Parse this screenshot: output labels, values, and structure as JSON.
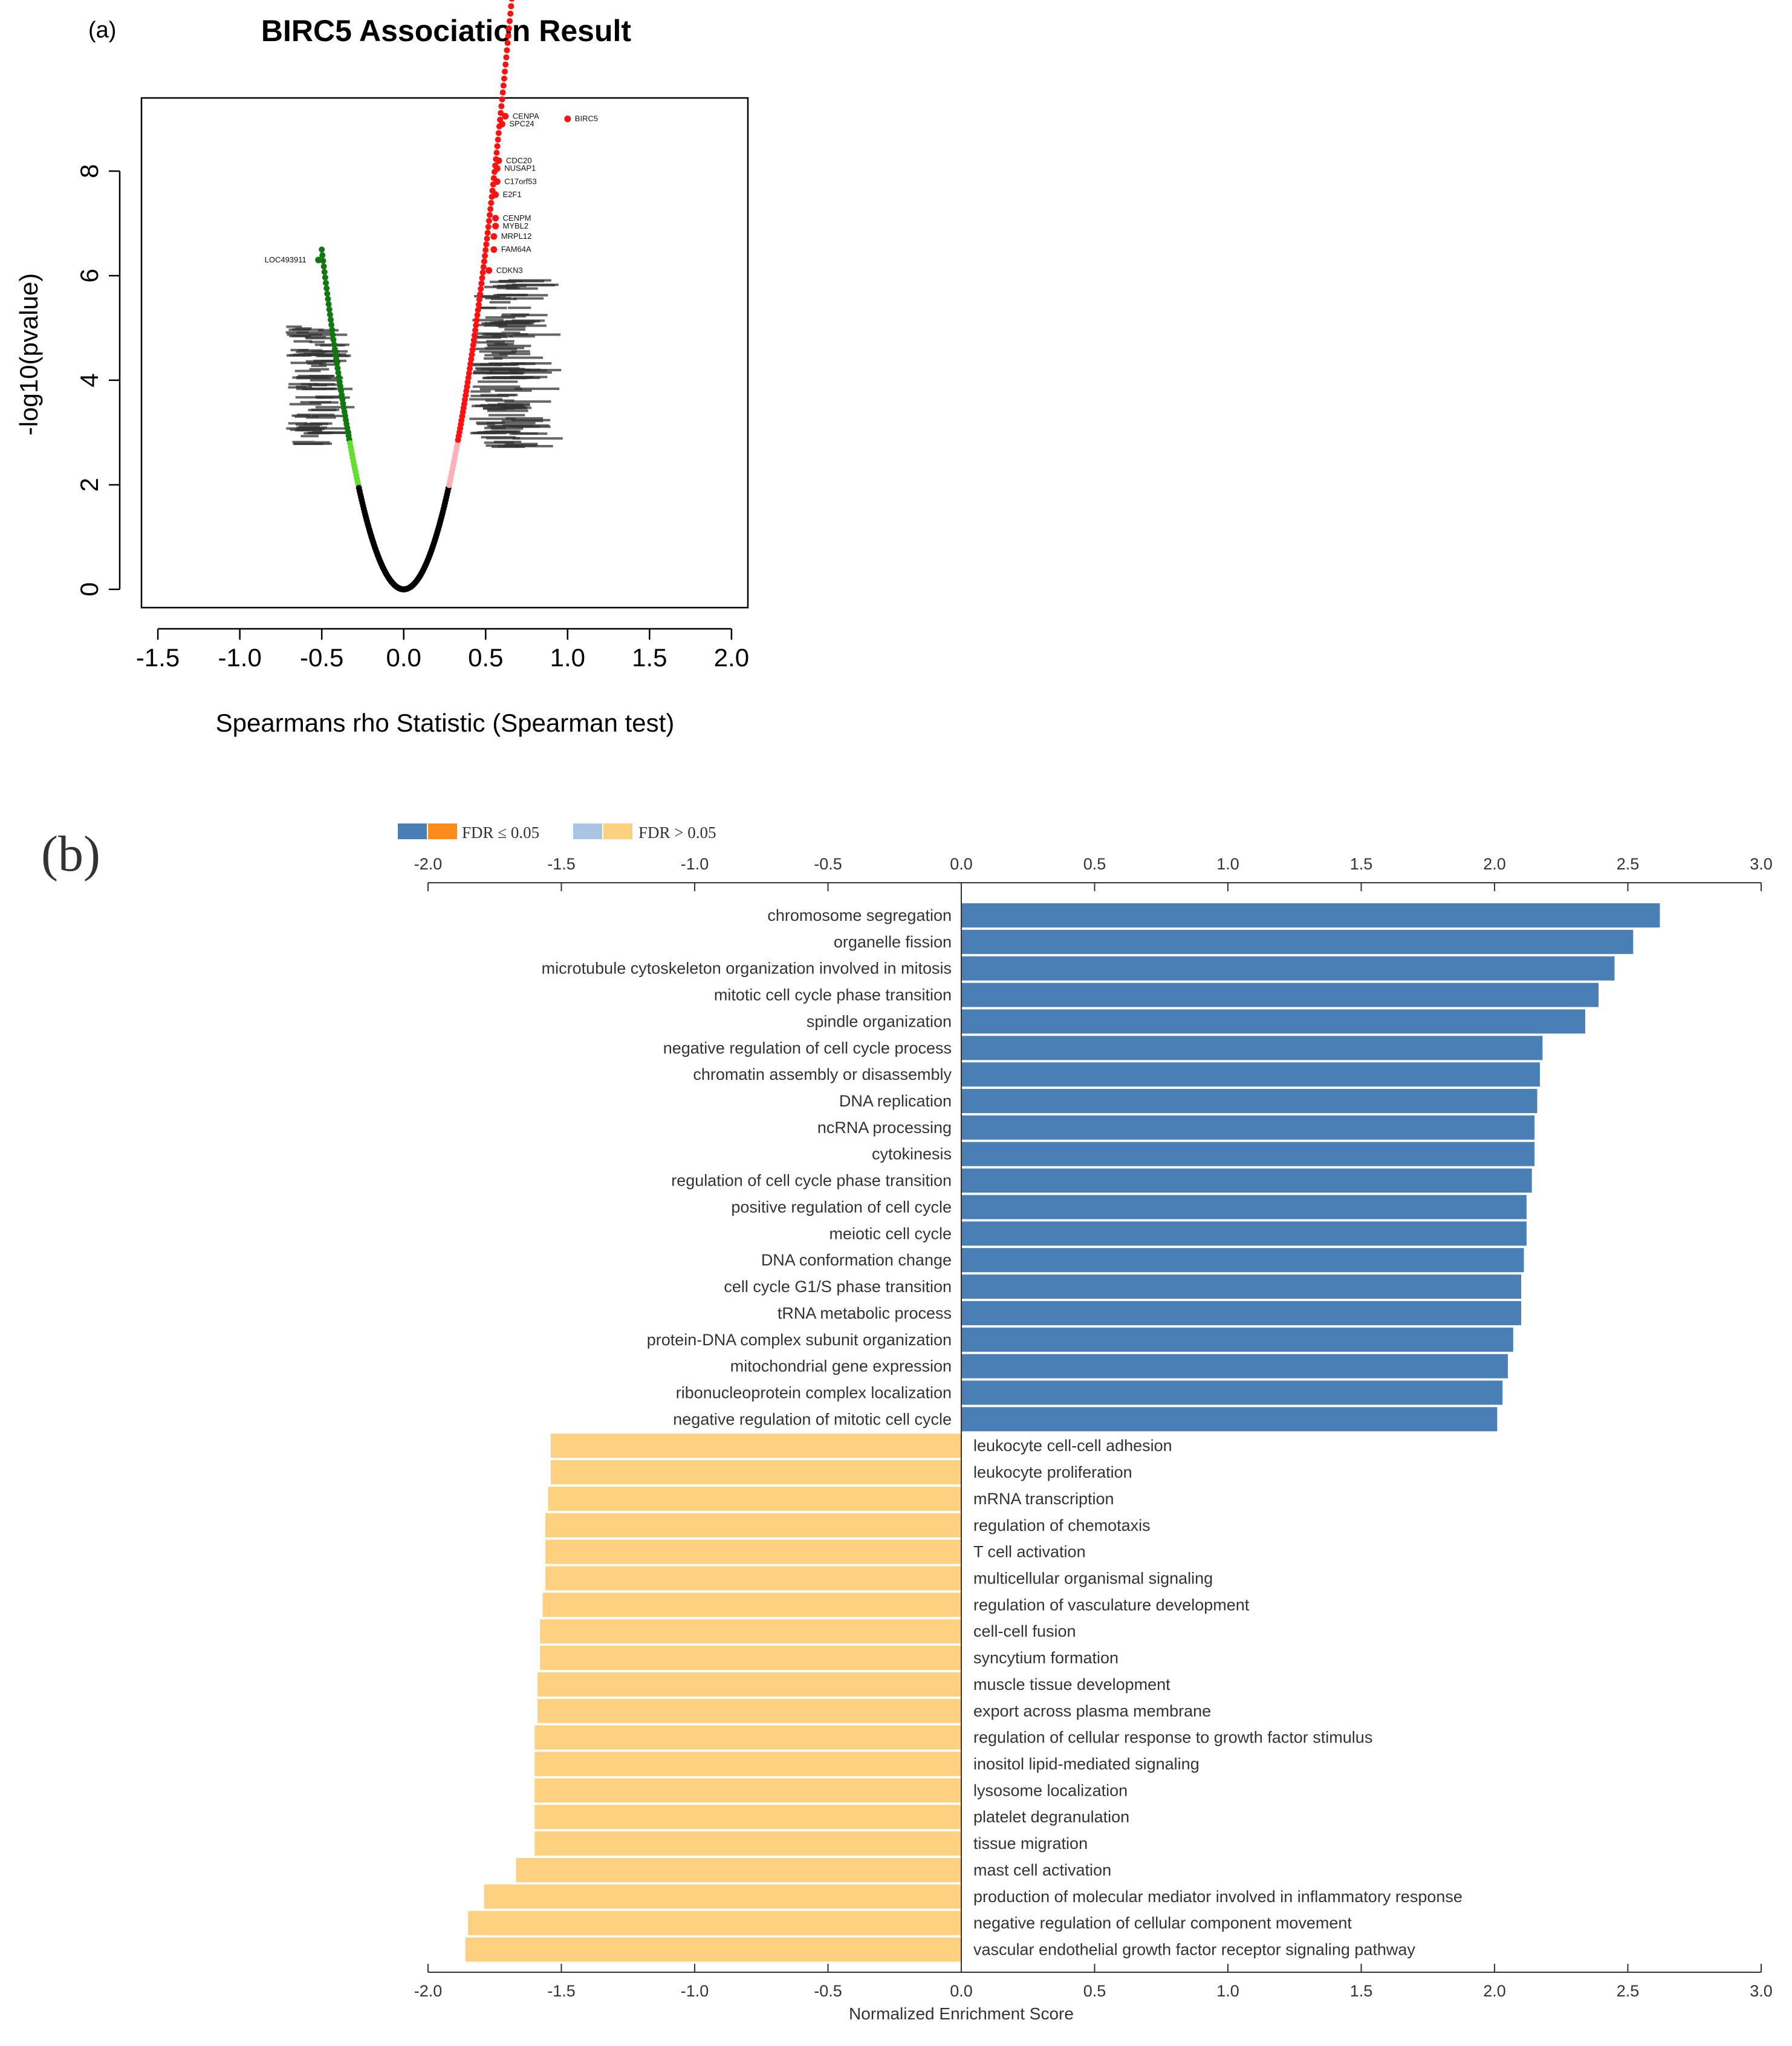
{
  "chart_data": [
    {
      "panel_label": "(a)",
      "type": "scatter",
      "title": "BIRC5 Association Result",
      "xlabel": "Spearmans rho Statistic (Spearman test)",
      "ylabel": "-log10(pvalue)",
      "xlim": [
        -1.6,
        2.1
      ],
      "ylim": [
        -0.35,
        9.4
      ],
      "xticks": [
        "-1.5",
        "-1.0",
        "-0.5",
        "0.0",
        "0.5",
        "1.0",
        "1.5",
        "2.0"
      ],
      "xtick_values": [
        -1.5,
        -1.0,
        -0.5,
        0.0,
        0.5,
        1.0,
        1.5,
        2.0
      ],
      "yticks": [
        "0",
        "2",
        "4",
        "6",
        "8"
      ],
      "ytick_values": [
        0,
        2,
        4,
        6,
        8
      ],
      "colors": {
        "null": "#000000",
        "neg_weak": "#66dd33",
        "neg_sig": "#117711",
        "pos_weak": "#ffb0b8",
        "pos_sig": "#ff1111",
        "annotation": "#111111"
      },
      "labeled_points": [
        {
          "name": "BIRC5",
          "x": 1.0,
          "y": 9.0
        },
        {
          "name": "CENPA",
          "x": 0.62,
          "y": 9.05
        },
        {
          "name": "SPC24",
          "x": 0.6,
          "y": 8.9
        },
        {
          "name": "CDC20",
          "x": 0.58,
          "y": 8.2
        },
        {
          "name": "NUSAP1",
          "x": 0.57,
          "y": 8.05
        },
        {
          "name": "C17orf53",
          "x": 0.57,
          "y": 7.8
        },
        {
          "name": "E2F1",
          "x": 0.56,
          "y": 7.55
        },
        {
          "name": "CENPM",
          "x": 0.56,
          "y": 7.1
        },
        {
          "name": "MYBL2",
          "x": 0.56,
          "y": 6.95
        },
        {
          "name": "MRPL12",
          "x": 0.55,
          "y": 6.75
        },
        {
          "name": "FAM64A",
          "x": 0.55,
          "y": 6.5
        },
        {
          "name": "CDKN3",
          "x": 0.52,
          "y": 6.1
        },
        {
          "name": "LOC493911",
          "x": -0.52,
          "y": 6.3
        }
      ]
    },
    {
      "panel_label": "(b)",
      "type": "bar",
      "orientation": "horizontal",
      "xlabel": "Normalized Enrichment Score",
      "xlim": [
        -2.0,
        3.0
      ],
      "xticks": [
        "-2.0",
        "-1.5",
        "-1.0",
        "-0.5",
        "0.0",
        "0.5",
        "1.0",
        "1.5",
        "2.0",
        "2.5",
        "3.0"
      ],
      "xtick_values": [
        -2.0,
        -1.5,
        -1.0,
        -0.5,
        0.0,
        0.5,
        1.0,
        1.5,
        2.0,
        2.5,
        3.0
      ],
      "legend": {
        "sig_label": "FDR ≤ 0.05",
        "nonsig_label": "FDR > 0.05",
        "position": "top-left"
      },
      "colors": {
        "sig_pos": "#4a7fb5",
        "sig_neg": "#ff8c1a",
        "nonsig_pos": "#a9c4e4",
        "nonsig_neg": "#fdd17f"
      },
      "categories": [
        "chromosome segregation",
        "organelle fission",
        "microtubule cytoskeleton organization involved in mitosis",
        "mitotic cell cycle phase transition",
        "spindle organization",
        "negative regulation of cell cycle process",
        "chromatin assembly or disassembly",
        "DNA replication",
        "ncRNA processing",
        "cytokinesis",
        "regulation of cell cycle phase transition",
        "positive regulation of cell cycle",
        "meiotic cell cycle",
        "DNA conformation change",
        "cell cycle G1/S phase transition",
        "tRNA metabolic process",
        "protein-DNA complex subunit organization",
        "mitochondrial gene expression",
        "ribonucleoprotein complex localization",
        "negative regulation of mitotic cell cycle",
        "leukocyte cell-cell adhesion",
        "leukocyte proliferation",
        "mRNA transcription",
        "regulation of chemotaxis",
        "T cell activation",
        "multicellular organismal signaling",
        "regulation of vasculature development",
        "cell-cell fusion",
        "syncytium formation",
        "muscle tissue development",
        "export across plasma membrane",
        "regulation of cellular response to growth factor stimulus",
        "inositol lipid-mediated signaling",
        "lysosome localization",
        "platelet degranulation",
        "tissue migration",
        "mast cell activation",
        "production of molecular mediator involved in inflammatory response",
        "negative regulation of cellular component movement",
        "vascular endothelial growth factor receptor signaling pathway"
      ],
      "values": [
        2.62,
        2.52,
        2.45,
        2.39,
        2.34,
        2.18,
        2.17,
        2.16,
        2.15,
        2.15,
        2.14,
        2.12,
        2.12,
        2.11,
        2.1,
        2.1,
        2.07,
        2.05,
        2.03,
        2.01,
        -1.54,
        -1.54,
        -1.55,
        -1.56,
        -1.56,
        -1.56,
        -1.57,
        -1.58,
        -1.58,
        -1.59,
        -1.59,
        -1.6,
        -1.6,
        -1.6,
        -1.6,
        -1.6,
        -1.67,
        -1.79,
        -1.85,
        -1.86
      ],
      "fdr_significant": [
        true,
        true,
        true,
        true,
        true,
        true,
        true,
        true,
        true,
        true,
        true,
        true,
        true,
        true,
        true,
        true,
        true,
        true,
        true,
        true,
        false,
        false,
        false,
        false,
        false,
        false,
        false,
        false,
        false,
        false,
        false,
        false,
        false,
        false,
        false,
        false,
        false,
        false,
        false,
        false
      ]
    }
  ]
}
